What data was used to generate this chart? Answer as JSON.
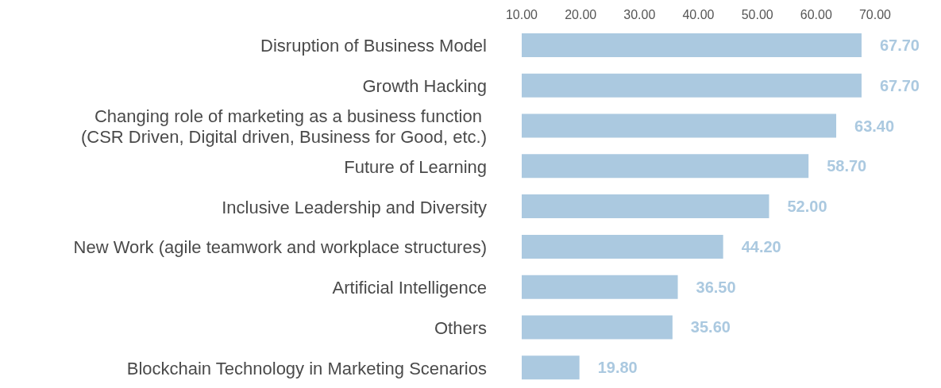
{
  "chart_data": {
    "type": "bar",
    "orientation": "horizontal",
    "categories": [
      "Disruption of Business Model",
      "Growth Hacking",
      "Changing role of marketing as a business function \n(CSR Driven, Digital driven, Business for Good, etc.)",
      "Future of Learning",
      "Inclusive Leadership and Diversity",
      "New Work (agile teamwork and workplace structures)",
      "Artificial Intelligence",
      "Others ",
      "Blockchain Technology in Marketing Scenarios"
    ],
    "values": [
      67.7,
      67.7,
      63.4,
      58.7,
      52.0,
      44.2,
      36.5,
      35.6,
      19.8
    ],
    "value_labels": [
      "67.70",
      "67.70",
      "63.40",
      "58.70",
      "52.00",
      "44.20",
      "36.50",
      "35.60",
      "19.80"
    ],
    "color": "#abc9e0",
    "xlim": [
      10,
      70
    ],
    "xticks": [
      {
        "value": 10,
        "label": "10.00"
      },
      {
        "value": 20,
        "label": "20.00"
      },
      {
        "value": 30,
        "label": "30.00"
      },
      {
        "value": 40,
        "label": "40.00"
      },
      {
        "value": 50,
        "label": "50.00"
      },
      {
        "value": 60,
        "label": "60.00"
      },
      {
        "value": 70,
        "label": "70.00"
      }
    ]
  }
}
